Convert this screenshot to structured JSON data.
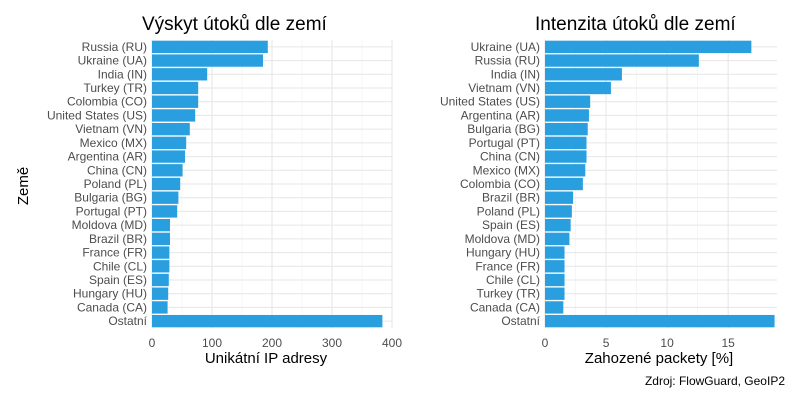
{
  "chart_data": [
    {
      "type": "bar",
      "orientation": "horizontal",
      "title": "Výskyt útoků dle zemí",
      "xlabel": "Unikátní IP adresy",
      "ylabel": "Země",
      "xlim": [
        0,
        400
      ],
      "xticks": [
        0,
        100,
        200,
        300,
        400
      ],
      "grid": true,
      "color": "#2a9fdf",
      "categories": [
        "Russia (RU)",
        "Ukraine (UA)",
        "India (IN)",
        "Turkey (TR)",
        "Colombia (CO)",
        "United States (US)",
        "Vietnam (VN)",
        "Mexico (MX)",
        "Argentina (AR)",
        "China (CN)",
        "Poland (PL)",
        "Bulgaria (BG)",
        "Portugal (PT)",
        "Moldova (MD)",
        "Brazil (BR)",
        "France (FR)",
        "Chile (CL)",
        "Spain (ES)",
        "Hungary (HU)",
        "Canada (CA)",
        "Ostatní"
      ],
      "values": [
        193,
        185,
        92,
        77,
        77,
        72,
        63,
        57,
        55,
        51,
        47,
        44,
        42,
        30,
        30,
        29,
        29,
        28,
        27,
        26,
        384
      ]
    },
    {
      "type": "bar",
      "orientation": "horizontal",
      "title": "Intenzita útoků dle zemí",
      "xlabel": "Zahozené packety [%]",
      "ylabel": "",
      "xlim": [
        0,
        19
      ],
      "xticks": [
        0,
        5,
        10,
        15
      ],
      "grid": true,
      "color": "#2a9fdf",
      "categories": [
        "Ukraine (UA)",
        "Russia (RU)",
        "India (IN)",
        "Vietnam (VN)",
        "United States (US)",
        "Argentina (AR)",
        "Bulgaria (BG)",
        "Portugal (PT)",
        "China (CN)",
        "Mexico (MX)",
        "Colombia (CO)",
        "Brazil (BR)",
        "Poland (PL)",
        "Spain (ES)",
        "Moldova (MD)",
        "Hungary (HU)",
        "France (FR)",
        "Chile (CL)",
        "Turkey (TR)",
        "Canada (CA)",
        "Ostatní"
      ],
      "values": [
        16.9,
        12.6,
        6.3,
        5.4,
        3.7,
        3.6,
        3.5,
        3.4,
        3.4,
        3.3,
        3.1,
        2.3,
        2.2,
        2.1,
        2.0,
        1.6,
        1.6,
        1.6,
        1.6,
        1.5,
        18.8
      ]
    }
  ],
  "caption": "Zdroj: FlowGuard, GeoIP2"
}
